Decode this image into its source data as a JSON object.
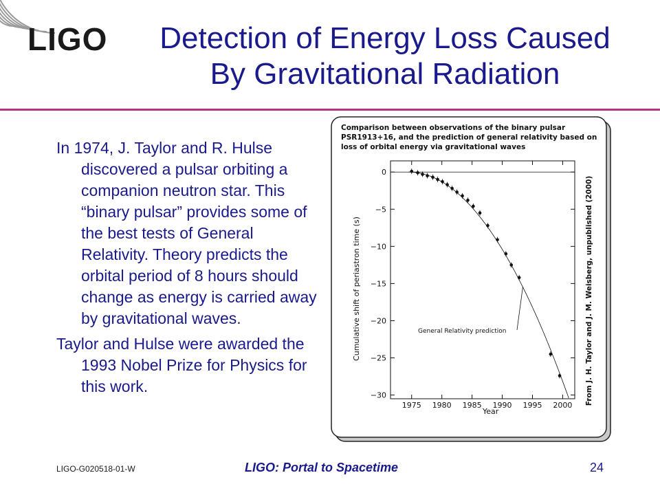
{
  "slide": {
    "logo": "LIGO",
    "title_line1": "Detection of Energy Loss Caused",
    "title_line2": "By Gravitational Radiation",
    "paragraphs": [
      "In 1974, J. Taylor and R. Hulse discovered a pulsar orbiting a companion neutron star. This “binary pulsar” provides some of the best tests of General Relativity. Theory predicts the orbital period of 8 hours should change as energy is carried away by gravitational waves.",
      "Taylor and Hulse were awarded the 1993 Nobel Prize for Physics for this work."
    ],
    "footer": {
      "doc_id": "LIGO-G020518-01-W",
      "center": "LIGO: Portal to Spacetime",
      "page": "24"
    }
  },
  "chart_data": {
    "type": "scatter",
    "caption_lines": [
      "Comparison between observations of the binary pulsar",
      "PSR1913+16, and the prediction of general relativity based on",
      "loss of orbital energy via gravitational waves"
    ],
    "xlabel": "Year",
    "ylabel": "Cumulative shift of periastron time (s)",
    "credit": "From J. H. Taylor and J. M. Weisberg, unpublished (2000)",
    "annotation": "General Relativity prediction",
    "xlim": [
      1971.5,
      2002
    ],
    "ylim": [
      -30.5,
      1.5
    ],
    "xticks": [
      1975,
      1980,
      1985,
      1990,
      1995,
      2000
    ],
    "yticks": [
      0,
      -5,
      -10,
      -15,
      -20,
      -25,
      -30
    ],
    "ytick_labels": [
      "0",
      "−5",
      "−10",
      "−15",
      "−20",
      "−25",
      "−30"
    ],
    "reference_line_y": 0,
    "prediction_curve": {
      "t0": 1974.5,
      "coefficient": -0.0433
    },
    "series": [
      {
        "x": [
          1975.0,
          1976.0,
          1976.8,
          1977.6,
          1978.5,
          1979.3,
          1980.1,
          1980.9,
          1981.7,
          1982.5,
          1983.4,
          1984.3,
          1985.2,
          1986.3,
          1987.6,
          1989.2,
          1990.6,
          1991.5,
          1992.8,
          1998.0,
          1999.5
        ],
        "y": [
          0.1,
          -0.1,
          -0.3,
          -0.5,
          -0.7,
          -1.0,
          -1.3,
          -1.7,
          -2.2,
          -2.7,
          -3.2,
          -3.8,
          -4.6,
          -5.5,
          -7.2,
          -9.1,
          -11.0,
          -12.5,
          -14.2,
          -24.5,
          -27.4
        ]
      }
    ]
  }
}
